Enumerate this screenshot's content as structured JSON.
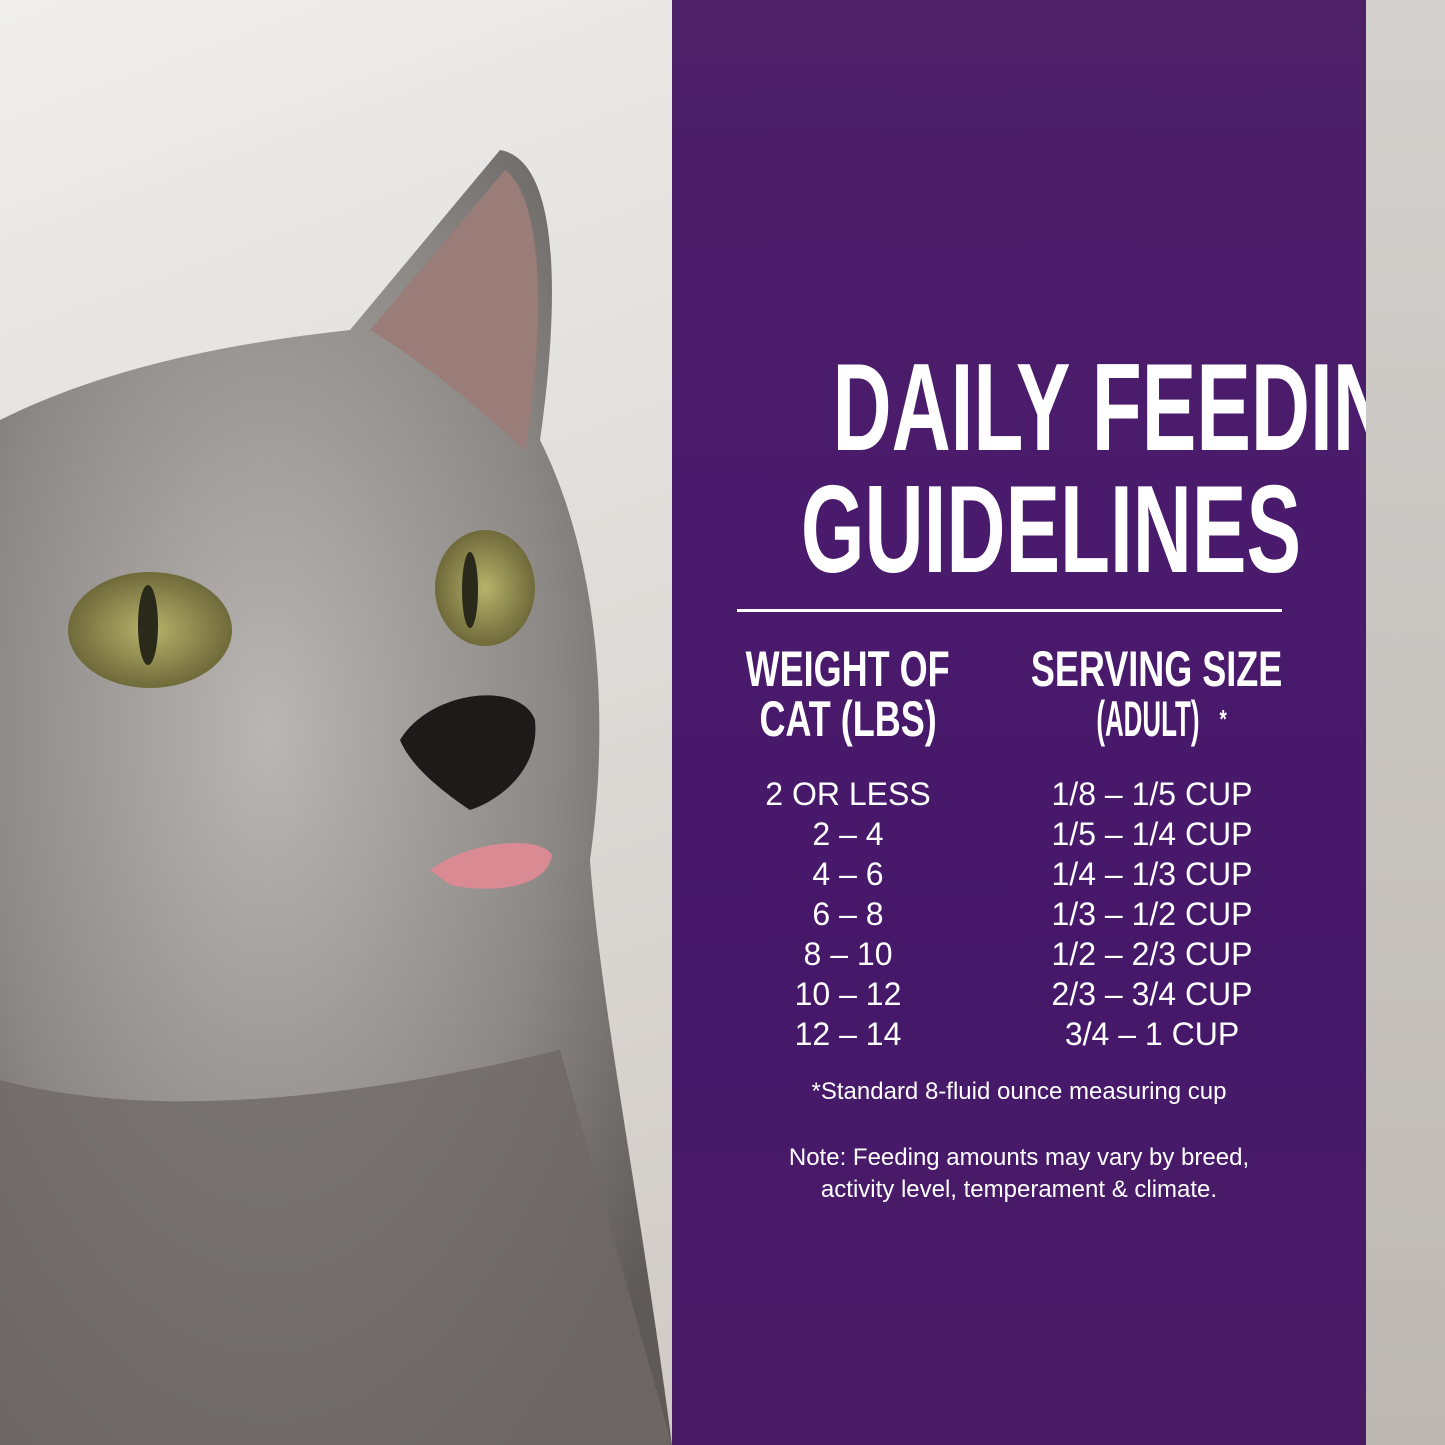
{
  "colors": {
    "panel": "#4a1a6c",
    "text": "#ffffff"
  },
  "image": {
    "subject": "gray cat photo"
  },
  "title": {
    "line1": "DAILY FEEDING",
    "line2": "GUIDELINES"
  },
  "table": {
    "headers": [
      {
        "line1": "WEIGHT OF",
        "line2": "CAT (LBS)"
      },
      {
        "line1": "SERVING SIZE",
        "line2": "(ADULT)",
        "mark": "*"
      }
    ],
    "rows": [
      {
        "weight": "2 OR LESS",
        "serving": "1/8 – 1/5 CUP"
      },
      {
        "weight": "2 – 4",
        "serving": "1/5 – 1/4 CUP"
      },
      {
        "weight": "4 – 6",
        "serving": "1/4 – 1/3 CUP"
      },
      {
        "weight": "6 – 8",
        "serving": "1/3 – 1/2 CUP"
      },
      {
        "weight": "8 – 10",
        "serving": "1/2 – 2/3 CUP"
      },
      {
        "weight": "10 – 12",
        "serving": "2/3 – 3/4 CUP"
      },
      {
        "weight": "12 – 14",
        "serving": "3/4 – 1 CUP"
      }
    ]
  },
  "footnote": "*Standard 8-fluid ounce measuring cup",
  "note": {
    "line1": "Note: Feeding amounts may vary by breed,",
    "line2": "activity level, temperament & climate."
  }
}
